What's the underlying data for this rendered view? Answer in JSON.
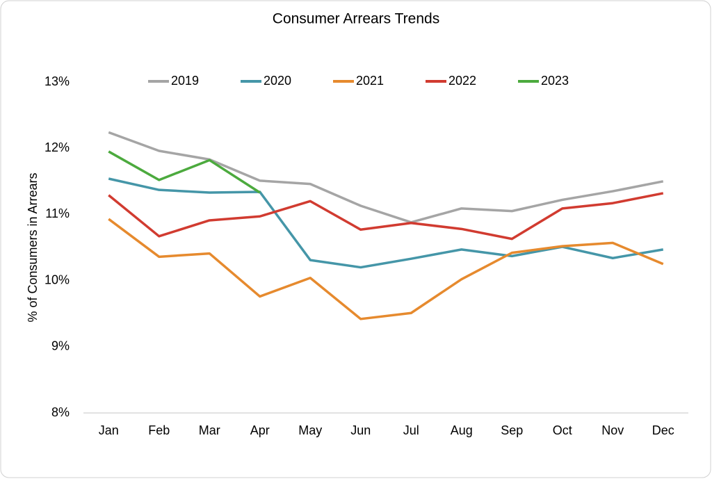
{
  "chart_data": {
    "type": "line",
    "title": "Consumer Arrears Trends",
    "y_label": "% of Consumers in Arrears",
    "categories": [
      "Jan",
      "Feb",
      "Mar",
      "Apr",
      "May",
      "Jun",
      "Jul",
      "Aug",
      "Sep",
      "Oct",
      "Nov",
      "Dec"
    ],
    "series": [
      {
        "name": "2019",
        "color": "#a5a5a5",
        "values": [
          12.24,
          11.96,
          11.83,
          11.51,
          11.46,
          11.13,
          10.88,
          11.09,
          11.05,
          11.22,
          11.35,
          11.5
        ]
      },
      {
        "name": "2020",
        "color": "#4596a8",
        "values": [
          11.54,
          11.37,
          11.33,
          11.34,
          10.31,
          10.2,
          10.33,
          10.47,
          10.37,
          10.51,
          10.34,
          10.47
        ]
      },
      {
        "name": "2021",
        "color": "#e68a2e",
        "values": [
          10.93,
          10.36,
          10.41,
          9.76,
          10.04,
          9.42,
          9.51,
          10.02,
          10.42,
          10.52,
          10.57,
          10.25
        ]
      },
      {
        "name": "2022",
        "color": "#d13b30",
        "values": [
          11.29,
          10.67,
          10.91,
          10.97,
          11.2,
          10.77,
          10.87,
          10.78,
          10.63,
          11.09,
          11.17,
          11.32
        ]
      },
      {
        "name": "2023",
        "color": "#4caa3e",
        "values": [
          11.95,
          11.52,
          11.82,
          11.33,
          null,
          null,
          null,
          null,
          null,
          null,
          null,
          null
        ]
      }
    ],
    "ylim": [
      8,
      13
    ],
    "yticks": [
      {
        "value": 8,
        "label": "8%"
      },
      {
        "value": 9,
        "label": "9%"
      },
      {
        "value": 10,
        "label": "10%"
      },
      {
        "value": 11,
        "label": "11%"
      },
      {
        "value": 12,
        "label": "12%"
      },
      {
        "value": 13,
        "label": "13%"
      }
    ],
    "grid": false,
    "legend": "top"
  }
}
